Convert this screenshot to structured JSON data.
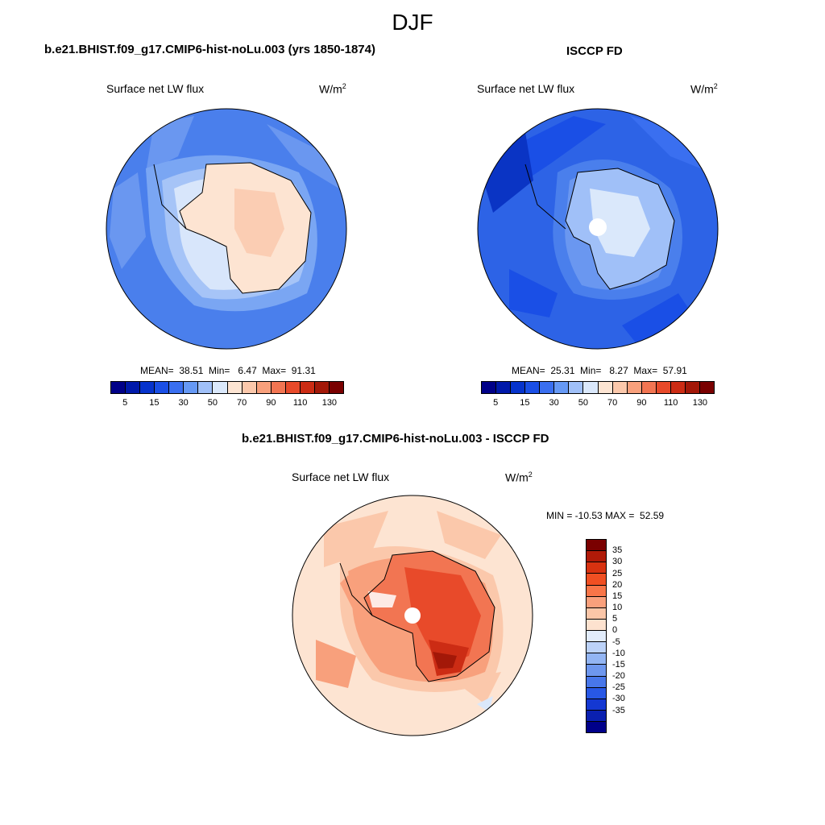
{
  "title": "DJF",
  "panels": {
    "model": {
      "title": "b.e21.BHIST.f09_g17.CMIP6-hist-noLu.003 (yrs 1850-1874)",
      "variable": "Surface net LW flux",
      "units": "W/m",
      "units_sup": "2",
      "stats": "MEAN=  38.51  Min=   6.47  Max=  91.31",
      "mean": 38.51,
      "min": 6.47,
      "max": 91.31
    },
    "obs": {
      "title": "ISCCP FD",
      "variable": "Surface net LW flux",
      "units": "W/m",
      "units_sup": "2",
      "stats": "MEAN=  25.31  Min=   8.27  Max=  57.91",
      "mean": 25.31,
      "min": 8.27,
      "max": 57.91
    },
    "diff": {
      "title": "b.e21.BHIST.f09_g17.CMIP6-hist-noLu.003 - ISCCP FD",
      "variable": "Surface net LW flux",
      "units": "W/m",
      "units_sup": "2",
      "stats": "MIN = -10.53 MAX =  52.59",
      "min": -10.53,
      "max": 52.59
    }
  },
  "colorbar_main": {
    "colors": [
      "#000088",
      "#0019aa",
      "#0633cc",
      "#1a4fe6",
      "#3a6ff0",
      "#6699f5",
      "#a0c0f8",
      "#dae8fb",
      "#fde4d2",
      "#fbc8ab",
      "#f8a07c",
      "#f27552",
      "#e84a2a",
      "#cc2c14",
      "#a31808",
      "#7a0000"
    ],
    "labels": [
      "5",
      "15",
      "30",
      "50",
      "70",
      "90",
      "110",
      "130"
    ]
  },
  "colorbar_diff": {
    "colors": [
      "#7a0000",
      "#b01a08",
      "#d83210",
      "#f04f22",
      "#f87548",
      "#f9a07c",
      "#fbc6a8",
      "#fde2cf",
      "#e2ecfb",
      "#bcd2f8",
      "#93b5f3",
      "#6e97ee",
      "#4877ea",
      "#2858e6",
      "#1438d2",
      "#0a20b0",
      "#00008a"
    ],
    "labels": [
      "35",
      "30",
      "25",
      "20",
      "15",
      "10",
      "5",
      "0",
      "-5",
      "-10",
      "-15",
      "-20",
      "-25",
      "-30",
      "-35"
    ]
  },
  "map_colors": {
    "ocean_model": "#4a7fec",
    "ocean_obs": "#2d63e6",
    "ocean_diff": "#fde4d2",
    "coast": "#000000"
  }
}
